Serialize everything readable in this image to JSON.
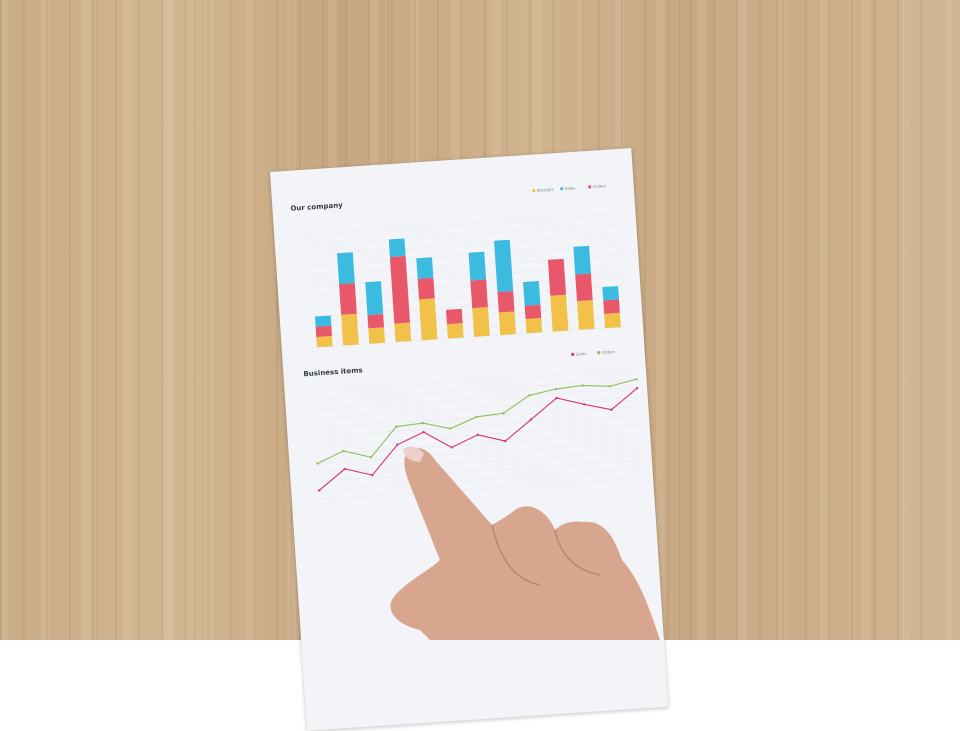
{
  "chart_data": [
    {
      "type": "bar",
      "stacked": true,
      "title": "Our company",
      "legend": [
        "Receipts",
        "Sales",
        "Orders"
      ],
      "legend_position": "top-right",
      "series": [
        {
          "name": "Receipts",
          "color": "#f2c14a",
          "values": [
            10,
            30,
            15,
            18,
            40,
            14,
            28,
            22,
            14,
            35,
            28,
            14
          ]
        },
        {
          "name": "Orders",
          "color": "#e9586a",
          "values": [
            10,
            30,
            13,
            65,
            20,
            14,
            27,
            20,
            13,
            35,
            26,
            13
          ]
        },
        {
          "name": "Sales",
          "color": "#3bbbe0",
          "values": [
            10,
            30,
            32,
            17,
            20,
            0,
            27,
            50,
            23,
            0,
            27,
            13
          ]
        }
      ],
      "ylim": [
        0,
        110
      ],
      "grid": true
    },
    {
      "type": "line",
      "title": "Business items",
      "legend": [
        "Sales",
        "Orders"
      ],
      "legend_position": "top-right",
      "series": [
        {
          "name": "Sales",
          "color": "#d8356f",
          "values": [
            10,
            32,
            23,
            55,
            67,
            48,
            60,
            51,
            73,
            95,
            86,
            78,
            100
          ]
        },
        {
          "name": "Orders",
          "color": "#8fbf5a",
          "values": [
            40,
            52,
            43,
            75,
            77,
            69,
            80,
            82,
            100,
            105,
            107,
            104,
            110
          ]
        }
      ],
      "ylim": [
        0,
        120
      ],
      "grid": true
    }
  ]
}
